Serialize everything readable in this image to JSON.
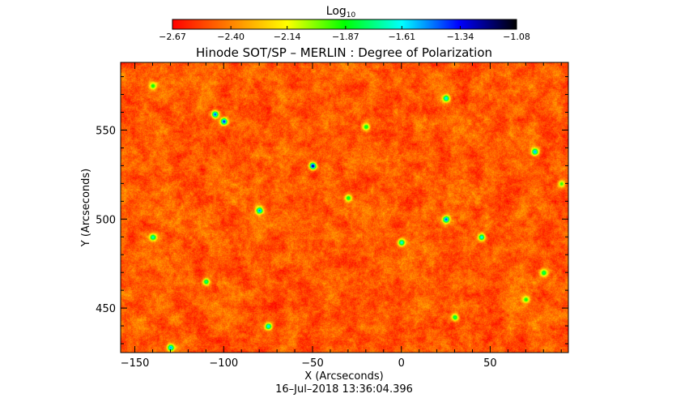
{
  "chart_data": {
    "type": "heatmap",
    "title": "Hinode SOT/SP – MERLIN : Degree of Polarization",
    "xlabel": "X (Arcseconds)",
    "ylabel": "Y (Arcseconds)",
    "footer": "16–Jul–2018 13:36:04.396",
    "colorbar": {
      "label_base": "Log",
      "label_sub": "10",
      "range": [
        -2.67,
        -1.08
      ],
      "ticks": [
        "−2.67",
        "−2.40",
        "−2.14",
        "−1.87",
        "−1.61",
        "−1.34",
        "−1.08"
      ],
      "tick_values": [
        -2.67,
        -2.4,
        -2.14,
        -1.87,
        -1.61,
        -1.34,
        -1.08
      ],
      "colors": [
        "#ff0000",
        "#ff8000",
        "#ffff00",
        "#00ff00",
        "#00ffff",
        "#0000ff",
        "#000000"
      ]
    },
    "xlim": [
      -158,
      94
    ],
    "ylim": [
      425,
      588
    ],
    "x_ticks": [
      -150,
      -100,
      -50,
      0,
      50
    ],
    "x_tick_labels": [
      "−150",
      "−100",
      "−50",
      "0",
      "50"
    ],
    "y_ticks": [
      450,
      500,
      550
    ],
    "y_tick_labels": [
      "450",
      "500",
      "550"
    ],
    "background_range": [
      -2.67,
      -2.35
    ],
    "features": [
      {
        "x": -105,
        "y": 559,
        "value": -1.4
      },
      {
        "x": -100,
        "y": 555,
        "value": -1.35
      },
      {
        "x": -50,
        "y": 530,
        "value": -1.2
      },
      {
        "x": -80,
        "y": 505,
        "value": -1.45
      },
      {
        "x": -140,
        "y": 490,
        "value": -1.65
      },
      {
        "x": 25,
        "y": 500,
        "value": -1.4
      },
      {
        "x": 0,
        "y": 487,
        "value": -1.6
      },
      {
        "x": 25,
        "y": 568,
        "value": -1.55
      },
      {
        "x": 75,
        "y": 538,
        "value": -1.5
      },
      {
        "x": -130,
        "y": 428,
        "value": -1.5
      },
      {
        "x": -75,
        "y": 440,
        "value": -1.55
      },
      {
        "x": -110,
        "y": 465,
        "value": -1.7
      },
      {
        "x": 45,
        "y": 490,
        "value": -1.6
      },
      {
        "x": 80,
        "y": 470,
        "value": -1.75
      },
      {
        "x": -20,
        "y": 552,
        "value": -1.8
      },
      {
        "x": 30,
        "y": 445,
        "value": -1.75
      },
      {
        "x": 70,
        "y": 455,
        "value": -1.85
      },
      {
        "x": -30,
        "y": 512,
        "value": -1.8
      },
      {
        "x": -140,
        "y": 575,
        "value": -1.85
      },
      {
        "x": 90,
        "y": 520,
        "value": -1.9
      }
    ]
  }
}
